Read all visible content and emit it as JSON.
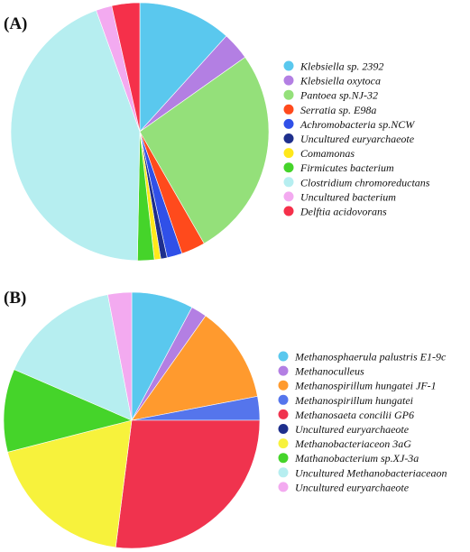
{
  "chart_data": [
    {
      "type": "pie",
      "panel_label": "(A)",
      "legend_position": "right",
      "slices": [
        {
          "label": "Klebsiella sp. 2392",
          "value": 11.7,
          "color": "#5ac8ee"
        },
        {
          "label": "Klebsiella oxytoca",
          "value": 3.5,
          "color": "#b37fe3"
        },
        {
          "label": "Pantoea sp.NJ-32",
          "value": 26.5,
          "color": "#94e07a"
        },
        {
          "label": "Serratia sp. E98a",
          "value": 3.0,
          "color": "#ff4a1c"
        },
        {
          "label": "Achromobacteria sp.NCW",
          "value": 1.9,
          "color": "#3050e8"
        },
        {
          "label": "Uncultured euryarchaeote",
          "value": 0.8,
          "color": "#1e2f8c"
        },
        {
          "label": "Comamonas",
          "value": 0.8,
          "color": "#ffe81a"
        },
        {
          "label": "Firmicutes bacterium",
          "value": 2.1,
          "color": "#45d42a"
        },
        {
          "label": "Clostridium chromoreductans",
          "value": 44.2,
          "color": "#b6eef0"
        },
        {
          "label": "Uncultured bacterium",
          "value": 2.0,
          "color": "#f3aaf0"
        },
        {
          "label": "Delftia acidovorans",
          "value": 3.5,
          "color": "#f5304a"
        }
      ]
    },
    {
      "type": "pie",
      "panel_label": "(B)",
      "legend_position": "right",
      "slices": [
        {
          "label": "Methanosphaerula palustris E1-9c",
          "value": 7.8,
          "color": "#5ac8ee"
        },
        {
          "label": "Methanoculleus",
          "value": 2.0,
          "color": "#b37fe3"
        },
        {
          "label": "Methanospirillum hungatei JF-1",
          "value": 12.2,
          "color": "#ff9a2e"
        },
        {
          "label": "Methanospirillum hungatei",
          "value": 3.0,
          "color": "#5575ec"
        },
        {
          "label": "Methanosaeta concilii GP6",
          "value": 27.0,
          "color": "#f0334e"
        },
        {
          "label": "Uncultured euryarchaeote",
          "value": 0.0,
          "color": "#1e2f8c"
        },
        {
          "label": "Methanobacteriaceon 3aG",
          "value": 19.0,
          "color": "#f7f23c"
        },
        {
          "label": "Mathanobacterium sp.XJ-3a",
          "value": 10.5,
          "color": "#45d42a"
        },
        {
          "label": "Uncultured Methanobacteriaceaon",
          "value": 15.5,
          "color": "#b6eef0"
        },
        {
          "label": "Uncultured euryarchaeote",
          "value": 3.0,
          "color": "#f3aaf0"
        }
      ]
    }
  ]
}
